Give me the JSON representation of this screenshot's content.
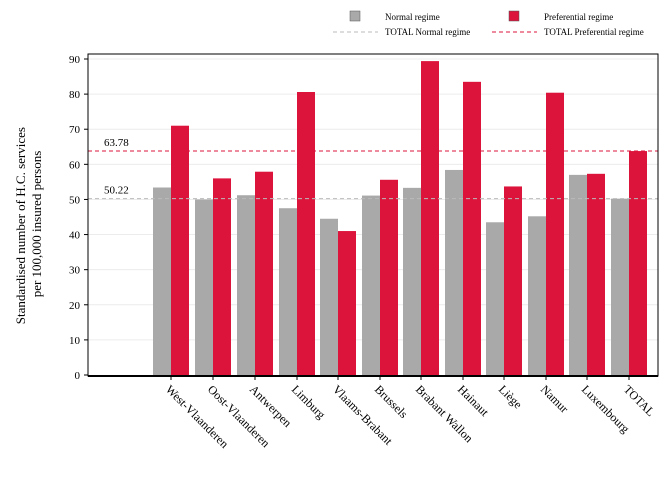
{
  "chart_data": {
    "type": "bar",
    "ylabel": "Standardised number of H.C. services\nper 100,000 insured persons",
    "ylim": [
      0,
      90
    ],
    "yticks": [
      0,
      10,
      20,
      30,
      40,
      50,
      60,
      70,
      80,
      90
    ],
    "grid": true,
    "legend_position": "top-right",
    "categories": [
      "West-Vlaanderen",
      "Oost-Vlaanderen",
      "Antwerpen",
      "Limburg",
      "Vlaams-Brabant",
      "Brussels",
      "Brabant Wallon",
      "Hainaut",
      "Liège",
      "Namur",
      "Luxembourg",
      "TOTAL"
    ],
    "series": [
      {
        "name": "Normal regime",
        "color": "#a9a9a9",
        "values": [
          53.4,
          50.0,
          51.2,
          47.5,
          44.5,
          51.1,
          53.3,
          58.4,
          43.5,
          45.2,
          57.0,
          50.22
        ]
      },
      {
        "name": "Preferential regime",
        "color": "#dc143c",
        "values": [
          71.0,
          56.0,
          57.9,
          80.6,
          41.0,
          55.6,
          89.4,
          83.5,
          53.7,
          80.4,
          57.3,
          63.78
        ]
      }
    ],
    "reference_lines": [
      {
        "name": "TOTAL Normal regime",
        "value": 50.22,
        "label": "50.22",
        "color": "#bbbbbb"
      },
      {
        "name": "TOTAL Preferential regime",
        "value": 63.78,
        "label": "63.78",
        "color": "#dc143c"
      }
    ]
  }
}
